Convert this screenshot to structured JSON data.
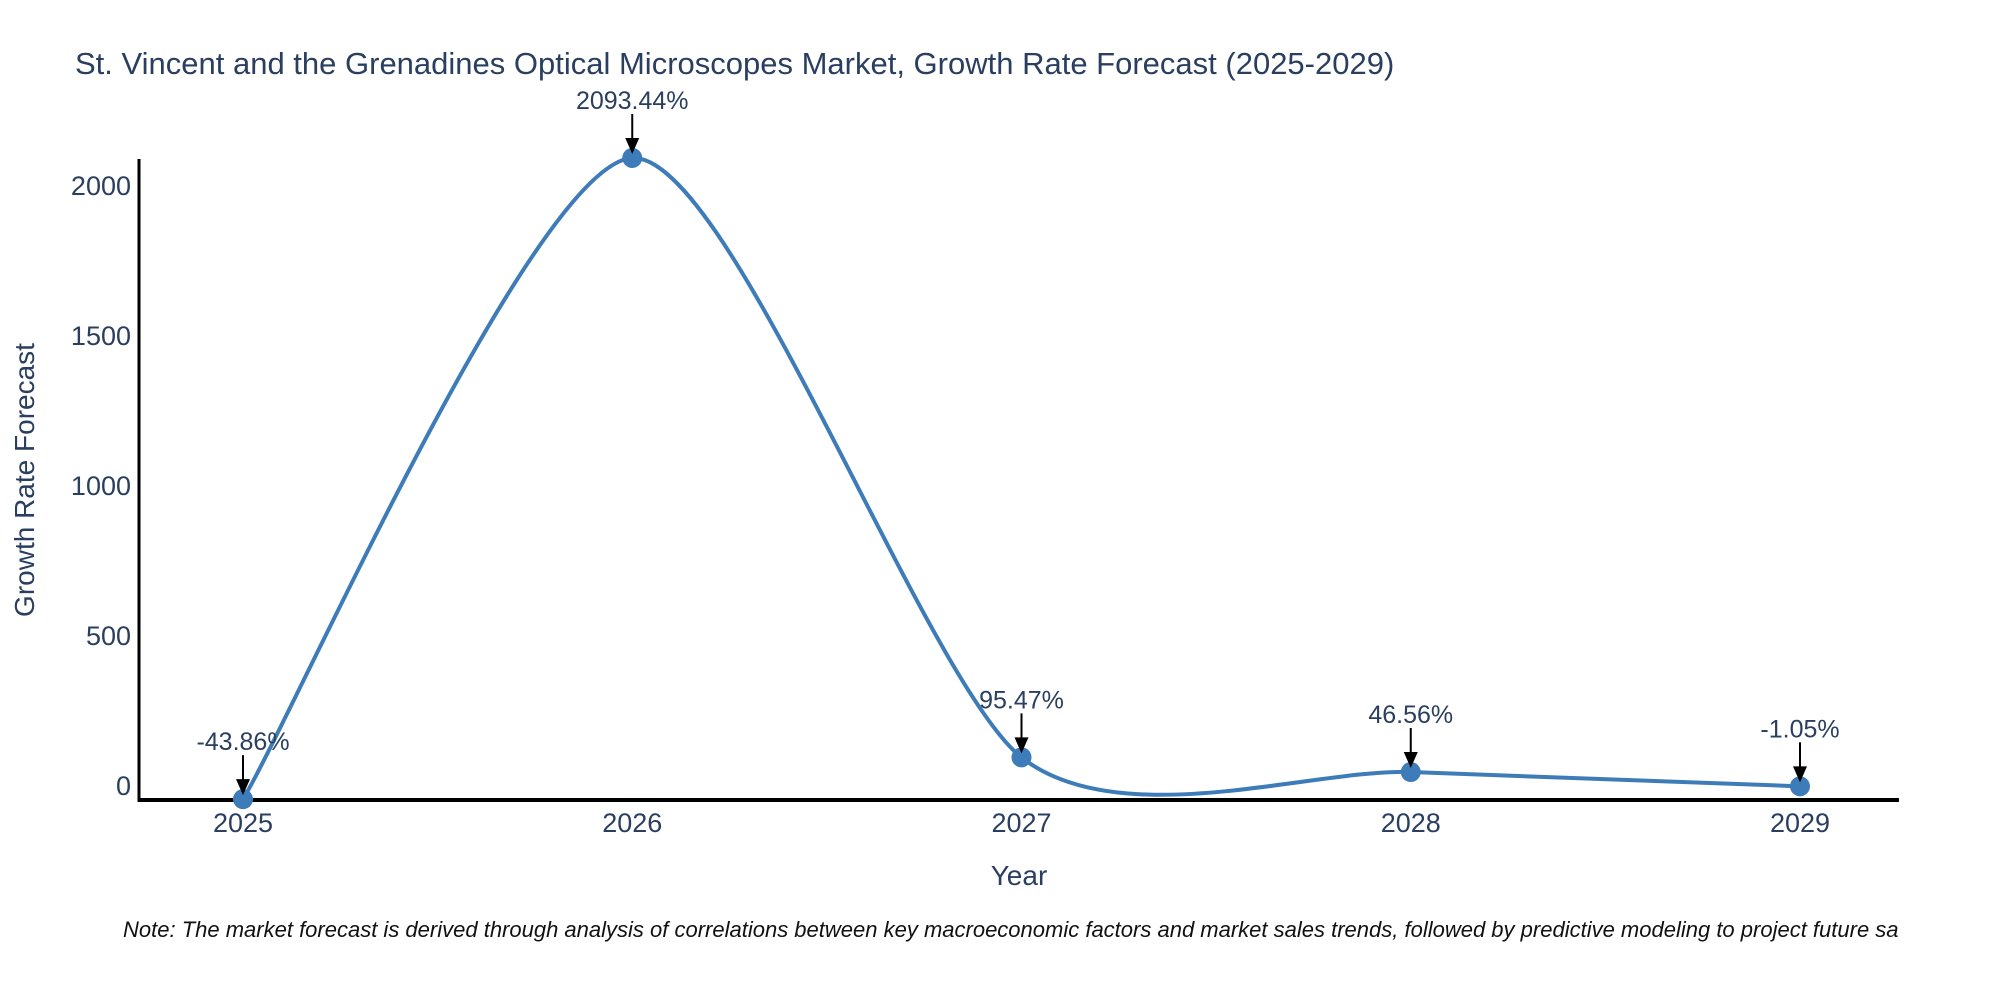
{
  "chart_data": {
    "type": "line",
    "title": "St. Vincent and the Grenadines Optical Microscopes Market, Growth Rate Forecast (2025-2029)",
    "xlabel": "Year",
    "ylabel": "Growth Rate Forecast",
    "line_shape": "spline",
    "grid": false,
    "legend": "none",
    "x": [
      2025,
      2026,
      2027,
      2028,
      2029
    ],
    "y": [
      -43.86,
      2093.44,
      95.47,
      46.56,
      -1.05
    ],
    "point_labels": [
      "-43.86%",
      "2093.44%",
      "95.47%",
      "46.56%",
      "-1.05%"
    ],
    "xticks": [
      "2025",
      "2026",
      "2027",
      "2028",
      "2029"
    ],
    "yticks": [
      "0",
      "500",
      "1000",
      "1500",
      "2000"
    ],
    "ytick_values": [
      0,
      500,
      1000,
      1500,
      2000
    ],
    "ylim": [
      -47,
      2097
    ],
    "colors": {
      "line": "#3d7cb8",
      "marker": "#3d7cb8",
      "text": "#2a3f5f",
      "axis": "#000000",
      "arrow": "#000000"
    }
  },
  "note": "Note: The market forecast is derived through analysis of correlations between key macroeconomic factors and market sales trends, followed by predictive modeling to project future sa"
}
